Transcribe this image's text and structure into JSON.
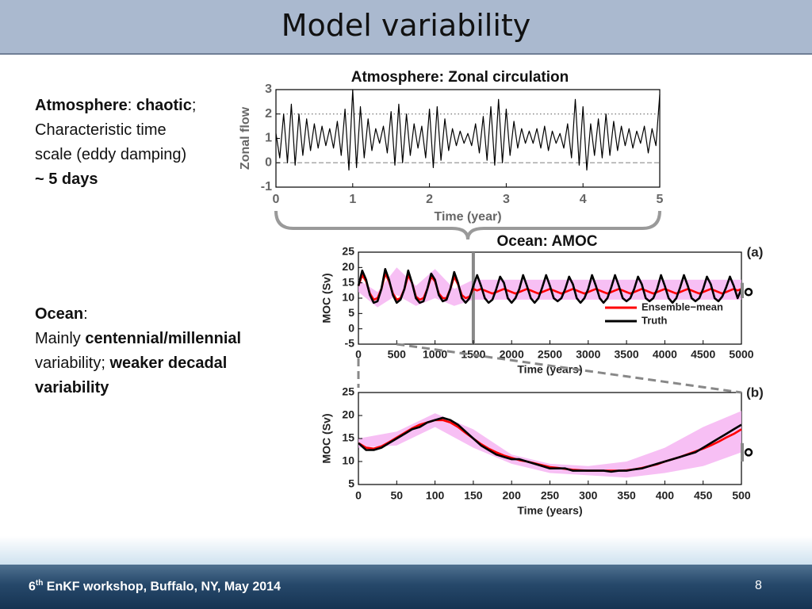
{
  "header": {
    "title": "Model variability"
  },
  "left_notes": [
    {
      "lines": [
        [
          {
            "text": "Atmosphere",
            "bold": true
          },
          {
            "text": ": "
          },
          {
            "text": "chaotic",
            "bold": true
          },
          {
            "text": ";"
          }
        ],
        [
          {
            "text": "Characteristic time"
          }
        ],
        [
          {
            "text": "scale (eddy damping)"
          }
        ],
        [
          {
            "text": "~ 5 days",
            "bold": true
          }
        ]
      ]
    },
    {
      "lines": [
        [
          {
            "text": "Ocean",
            "bold": true
          },
          {
            "text": ":"
          }
        ],
        [
          {
            "text": "Mainly "
          },
          {
            "text": "centennial/millennial",
            "bold": true
          }
        ],
        [
          {
            "text": "variability; "
          },
          {
            "text": "weaker decadal",
            "bold": true
          }
        ],
        [
          {
            "text": "variability",
            "bold": true
          }
        ]
      ]
    }
  ],
  "chart_data": [
    {
      "type": "line",
      "title": "Atmosphere: Zonal circulation",
      "xlabel": "Time (year)",
      "ylabel": "Zonal flow",
      "xlim": [
        0,
        5
      ],
      "ylim": [
        -1,
        3
      ],
      "xticks": [
        0,
        1,
        2,
        3,
        4,
        5
      ],
      "yticks": [
        -1,
        0,
        1,
        2,
        3
      ],
      "reference_lines": [
        2,
        0
      ],
      "x": [
        0,
        0.05,
        0.1,
        0.15,
        0.2,
        0.25,
        0.3,
        0.35,
        0.4,
        0.45,
        0.5,
        0.55,
        0.6,
        0.65,
        0.7,
        0.75,
        0.8,
        0.85,
        0.9,
        0.95,
        1,
        1.05,
        1.1,
        1.15,
        1.2,
        1.25,
        1.3,
        1.35,
        1.4,
        1.45,
        1.5,
        1.55,
        1.6,
        1.65,
        1.7,
        1.75,
        1.8,
        1.85,
        1.9,
        1.95,
        2,
        2.05,
        2.1,
        2.15,
        2.2,
        2.25,
        2.3,
        2.35,
        2.4,
        2.45,
        2.5,
        2.55,
        2.6,
        2.65,
        2.7,
        2.75,
        2.8,
        2.85,
        2.9,
        2.95,
        3,
        3.05,
        3.1,
        3.15,
        3.2,
        3.25,
        3.3,
        3.35,
        3.4,
        3.45,
        3.5,
        3.55,
        3.6,
        3.65,
        3.7,
        3.75,
        3.8,
        3.85,
        3.9,
        3.95,
        4,
        4.05,
        4.1,
        4.15,
        4.2,
        4.25,
        4.3,
        4.35,
        4.4,
        4.45,
        4.5,
        4.55,
        4.6,
        4.65,
        4.7,
        4.75,
        4.8,
        4.85,
        4.9,
        4.95,
        5
      ],
      "series": [
        {
          "color": "#000000",
          "values": [
            1.2,
            0.2,
            2.0,
            0.0,
            2.4,
            -0.1,
            2.0,
            0.3,
            1.8,
            0.5,
            1.6,
            0.6,
            1.5,
            0.7,
            1.4,
            0.6,
            1.7,
            0.3,
            2.2,
            -0.3,
            3.0,
            -0.2,
            2.3,
            0.2,
            1.8,
            0.5,
            1.4,
            0.8,
            1.5,
            0.4,
            2.1,
            -0.1,
            2.4,
            0.0,
            2.0,
            0.3,
            1.6,
            0.6,
            1.5,
            0.2,
            2.2,
            -0.2,
            2.3,
            0.1,
            1.8,
            0.5,
            1.4,
            0.7,
            1.3,
            0.8,
            1.2,
            0.7,
            1.6,
            0.4,
            1.9,
            0.1,
            2.3,
            -0.1,
            2.6,
            0.0,
            2.2,
            0.3,
            1.7,
            0.6,
            1.4,
            0.8,
            1.3,
            0.8,
            1.4,
            0.6,
            1.5,
            0.5,
            1.3,
            0.8,
            1.2,
            0.6,
            1.6,
            0.2,
            2.6,
            -0.1,
            2.3,
            -0.3,
            1.6,
            0.3,
            1.8,
            0.2,
            2.0,
            0.3,
            1.7,
            0.5,
            1.5,
            0.7,
            1.4,
            0.6,
            1.3,
            0.8,
            1.5,
            0.4,
            1.4,
            0.7,
            2.8
          ]
        }
      ]
    },
    {
      "type": "line",
      "title": "Ocean: AMOC",
      "panel_label": "(a)",
      "xlabel": "Time (years)",
      "ylabel": "MOC (Sv)",
      "xlim": [
        0,
        5000
      ],
      "ylim": [
        -5,
        25
      ],
      "xticks": [
        0,
        500,
        1000,
        1500,
        2000,
        2500,
        3000,
        3500,
        4000,
        4500,
        5000
      ],
      "yticks": [
        -5,
        0,
        5,
        10,
        15,
        20,
        25
      ],
      "legend": "lower right",
      "divider_x": 1500,
      "side_marker": {
        "value": 12,
        "low": 10,
        "high": 15
      },
      "band": {
        "color": "#f6b4f2",
        "x": [
          0,
          250,
          500,
          750,
          1000,
          1250,
          1500,
          1750,
          2000,
          2250,
          2500,
          2750,
          3000,
          3250,
          3500,
          3750,
          4000,
          4250,
          4500,
          4750,
          5000
        ],
        "lower": [
          12,
          7,
          11,
          7.5,
          10,
          7.5,
          9.5,
          9.5,
          9.5,
          9.5,
          9.5,
          9.5,
          9.5,
          9.5,
          9.5,
          9.5,
          9.5,
          9.5,
          9.5,
          9.5,
          9.5
        ],
        "upper": [
          16,
          12,
          20,
          14,
          19.5,
          13,
          16,
          16,
          16,
          16,
          16,
          16,
          16,
          16,
          16,
          16,
          16,
          16,
          16,
          16,
          16
        ]
      },
      "x": [
        0,
        50,
        100,
        150,
        200,
        250,
        300,
        350,
        400,
        450,
        500,
        550,
        600,
        650,
        700,
        750,
        800,
        850,
        900,
        950,
        1000,
        1050,
        1100,
        1150,
        1200,
        1250,
        1300,
        1350,
        1400,
        1450,
        1500,
        1550,
        1600,
        1650,
        1700,
        1750,
        1800,
        1850,
        1900,
        1950,
        2000,
        2050,
        2100,
        2150,
        2200,
        2250,
        2300,
        2350,
        2400,
        2450,
        2500,
        2550,
        2600,
        2650,
        2700,
        2750,
        2800,
        2850,
        2900,
        2950,
        3000,
        3050,
        3100,
        3150,
        3200,
        3250,
        3300,
        3350,
        3400,
        3450,
        3500,
        3550,
        3600,
        3650,
        3700,
        3750,
        3800,
        3850,
        3900,
        3950,
        4000,
        4050,
        4100,
        4150,
        4200,
        4250,
        4300,
        4350,
        4400,
        4450,
        4500,
        4550,
        4600,
        4650,
        4700,
        4750,
        4800,
        4850,
        4900,
        4950,
        5000
      ],
      "series": [
        {
          "name": "Ensemble−mean",
          "color": "#ff0000",
          "values": [
            14,
            17.5,
            15.5,
            11.5,
            9.5,
            10,
            13,
            18,
            15.5,
            11.5,
            9.5,
            10,
            13,
            17.5,
            15,
            10.5,
            9.5,
            10,
            13,
            17,
            15.5,
            11.5,
            10,
            10,
            13,
            17,
            14.5,
            11,
            10,
            10.5,
            13,
            12.5,
            13,
            12.5,
            12,
            11.5,
            12,
            12.5,
            13,
            12.5,
            12,
            11.5,
            12,
            12.5,
            13,
            12.5,
            12,
            11.5,
            12,
            12.5,
            13,
            12.5,
            12,
            11.5,
            12,
            12.5,
            13,
            12.5,
            12,
            11.5,
            12,
            12.5,
            13,
            12.5,
            12,
            11.5,
            12,
            12.5,
            13,
            12.5,
            12,
            11.5,
            12,
            12.5,
            13,
            12.5,
            12,
            11.5,
            12,
            12.5,
            13,
            12.5,
            12,
            11.5,
            12,
            12.5,
            13,
            12.5,
            12,
            11.5,
            12,
            12.5,
            13,
            12.5,
            12,
            11.5,
            12,
            12.5,
            13,
            12.5,
            13
          ]
        },
        {
          "name": "Truth",
          "color": "#000000",
          "values": [
            14,
            19,
            16,
            11,
            8.5,
            9,
            13,
            19.5,
            16,
            11,
            8.5,
            9.5,
            13,
            19,
            15,
            10,
            8.5,
            9,
            13,
            18,
            16,
            11,
            9,
            9.5,
            13,
            18.5,
            15,
            10,
            8.5,
            10,
            14,
            17.5,
            14,
            10,
            8.5,
            9.5,
            13,
            17,
            15,
            10,
            8.5,
            10,
            13,
            17.5,
            14,
            10,
            8.5,
            10,
            13.5,
            17.5,
            14,
            10,
            9,
            10,
            13,
            17,
            14.5,
            10,
            8.5,
            10,
            13,
            17.5,
            14,
            10,
            8.5,
            10,
            13.5,
            17.5,
            14,
            10,
            9,
            10,
            13,
            17,
            14.5,
            10,
            9,
            10,
            13,
            17.5,
            14,
            10,
            8.5,
            10,
            13.5,
            17.5,
            14,
            10,
            9,
            10,
            13,
            17,
            14.5,
            10,
            9,
            10.5,
            13.5,
            17,
            14,
            10,
            13
          ]
        }
      ]
    },
    {
      "type": "line",
      "panel_label": "(b)",
      "xlabel": "Time (years)",
      "ylabel": "MOC (Sv)",
      "xlim": [
        0,
        500
      ],
      "ylim": [
        5,
        25
      ],
      "xticks": [
        0,
        50,
        100,
        150,
        200,
        250,
        300,
        350,
        400,
        450,
        500
      ],
      "yticks": [
        5,
        10,
        15,
        20,
        25
      ],
      "side_marker": {
        "value": 12,
        "low": 10,
        "high": 14
      },
      "band": {
        "color": "#f6b4f2",
        "x": [
          0,
          50,
          100,
          150,
          200,
          250,
          300,
          350,
          400,
          450,
          500
        ],
        "lower": [
          13,
          13.5,
          17.5,
          13,
          9.5,
          7.5,
          7,
          6.5,
          7.5,
          9,
          12
        ],
        "upper": [
          15,
          16.5,
          20.5,
          17,
          11.5,
          9.5,
          9,
          10,
          13,
          17.5,
          21
        ]
      },
      "x": [
        0,
        10,
        20,
        30,
        40,
        50,
        60,
        70,
        80,
        90,
        100,
        110,
        120,
        130,
        140,
        150,
        160,
        170,
        180,
        190,
        200,
        210,
        220,
        230,
        240,
        250,
        260,
        270,
        280,
        290,
        300,
        310,
        320,
        330,
        340,
        350,
        360,
        370,
        380,
        390,
        400,
        410,
        420,
        430,
        440,
        450,
        460,
        470,
        480,
        490,
        500
      ],
      "series": [
        {
          "color": "#ff0000",
          "values": [
            14,
            13,
            12.8,
            13.3,
            14.2,
            15.2,
            16.2,
            17.2,
            18,
            18.5,
            19,
            19,
            18.5,
            17.5,
            16.2,
            15,
            13.8,
            12.8,
            12,
            11.3,
            10.8,
            10.3,
            10,
            9.6,
            9.2,
            8.8,
            8.6,
            8.4,
            8.2,
            8.1,
            8,
            8,
            8,
            8,
            8,
            8.1,
            8.3,
            8.6,
            9,
            9.4,
            10,
            10.5,
            11,
            11.6,
            12.2,
            12.8,
            13.5,
            14.3,
            15.2,
            16,
            17
          ]
        },
        {
          "color": "#000000",
          "values": [
            14,
            12.5,
            12.5,
            13,
            14,
            15,
            16,
            17,
            17.5,
            18.5,
            19,
            19.5,
            19,
            18,
            16.5,
            15,
            13.5,
            12.5,
            11.5,
            11,
            10.5,
            10.5,
            10,
            9.5,
            9,
            8.5,
            8.5,
            8.5,
            8,
            8,
            8,
            8,
            8,
            7.8,
            8,
            8,
            8.3,
            8.5,
            9,
            9.5,
            10,
            10.5,
            11,
            11.5,
            12,
            13,
            14,
            15,
            16,
            17,
            18
          ]
        }
      ]
    }
  ],
  "footer": {
    "ordinal": "6",
    "ordinal_suffix": "th",
    "text": " EnKF workshop, Buffalo, NY, May 2014",
    "page_number": "8"
  }
}
